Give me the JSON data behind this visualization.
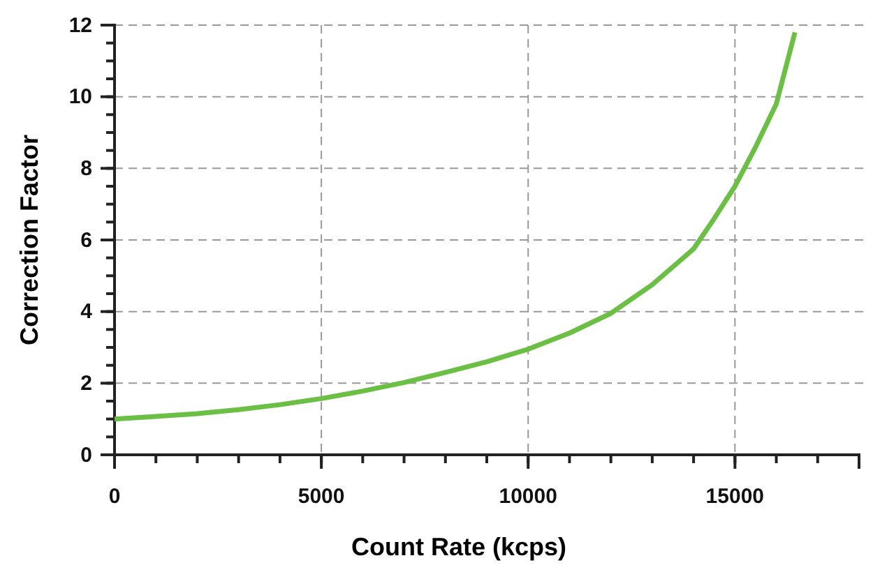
{
  "chart_data": {
    "type": "line",
    "xlabel": "Count Rate (kcps)",
    "ylabel": "Correction Factor",
    "x": [
      0,
      1000,
      2000,
      3000,
      4000,
      5000,
      6000,
      7000,
      8000,
      9000,
      10000,
      11000,
      12000,
      13000,
      14000,
      14500,
      15000,
      15500,
      16000,
      16450
    ],
    "series": [
      {
        "color": "#6cbf45",
        "values": [
          1.0,
          1.07,
          1.15,
          1.26,
          1.4,
          1.57,
          1.78,
          2.02,
          2.3,
          2.6,
          2.95,
          3.4,
          3.95,
          4.75,
          5.75,
          6.6,
          7.5,
          8.6,
          9.8,
          11.8
        ]
      }
    ],
    "xlim": [
      0,
      18000
    ],
    "ylim": [
      0,
      12
    ],
    "xticks": [
      0,
      5000,
      10000,
      15000
    ],
    "yticks": [
      0,
      2,
      4,
      6,
      8,
      10,
      12
    ],
    "grid": true,
    "line_style": "solid",
    "marker": "none"
  }
}
